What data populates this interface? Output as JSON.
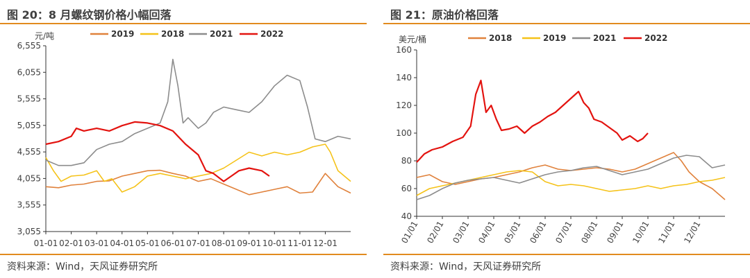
{
  "charts": [
    {
      "title": "图 20：8 月螺纹钢价格小幅回落",
      "source": "资料来源：Wind，天风证券研究所",
      "chart_data": {
        "type": "line",
        "ylabel": "元/吨",
        "ylim": [
          3055,
          6555
        ],
        "yticks": [
          "6,555",
          "6,055",
          "5,555",
          "5,055",
          "4,555",
          "4,055",
          "3,555",
          "3,055"
        ],
        "ytick_values": [
          6555,
          6055,
          5555,
          5055,
          4555,
          4055,
          3555,
          3055
        ],
        "xticks": [
          "01-01",
          "02-01",
          "03-01",
          "04-01",
          "05-01",
          "06-01",
          "07-01",
          "08-01",
          "09-01",
          "10-01",
          "11-01",
          "12-01"
        ],
        "xlim": [
          0,
          12
        ],
        "legend_position": "top",
        "series": [
          {
            "name": "2019",
            "color": "#e0813b",
            "points": [
              [
                0,
                3900
              ],
              [
                0.5,
                3880
              ],
              [
                1,
                3930
              ],
              [
                1.5,
                3950
              ],
              [
                2,
                4000
              ],
              [
                2.5,
                4010
              ],
              [
                3,
                4100
              ],
              [
                3.5,
                4150
              ],
              [
                4,
                4200
              ],
              [
                4.5,
                4210
              ],
              [
                5,
                4150
              ],
              [
                5.5,
                4100
              ],
              [
                6,
                4000
              ],
              [
                6.5,
                4050
              ],
              [
                7,
                3950
              ],
              [
                7.5,
                3850
              ],
              [
                8,
                3750
              ],
              [
                8.5,
                3800
              ],
              [
                9,
                3850
              ],
              [
                9.5,
                3900
              ],
              [
                10,
                3780
              ],
              [
                10.5,
                3800
              ],
              [
                11,
                4150
              ],
              [
                11.5,
                3900
              ],
              [
                12,
                3780
              ]
            ]
          },
          {
            "name": "2018",
            "color": "#f5c218",
            "points": [
              [
                0,
                4450
              ],
              [
                0.3,
                4200
              ],
              [
                0.6,
                4000
              ],
              [
                1,
                4100
              ],
              [
                1.5,
                4120
              ],
              [
                2,
                4200
              ],
              [
                2.3,
                4000
              ],
              [
                2.6,
                4050
              ],
              [
                3,
                3800
              ],
              [
                3.5,
                3900
              ],
              [
                4,
                4100
              ],
              [
                4.5,
                4150
              ],
              [
                5,
                4100
              ],
              [
                5.5,
                4050
              ],
              [
                6,
                4100
              ],
              [
                6.5,
                4150
              ],
              [
                7,
                4250
              ],
              [
                7.5,
                4400
              ],
              [
                8,
                4550
              ],
              [
                8.5,
                4480
              ],
              [
                9,
                4550
              ],
              [
                9.5,
                4500
              ],
              [
                10,
                4550
              ],
              [
                10.5,
                4650
              ],
              [
                11,
                4700
              ],
              [
                11.2,
                4550
              ],
              [
                11.5,
                4200
              ],
              [
                12,
                4000
              ]
            ]
          },
          {
            "name": "2021",
            "color": "#8c8c8c",
            "points": [
              [
                0,
                4400
              ],
              [
                0.5,
                4300
              ],
              [
                1,
                4300
              ],
              [
                1.5,
                4350
              ],
              [
                2,
                4600
              ],
              [
                2.5,
                4700
              ],
              [
                3,
                4750
              ],
              [
                3.5,
                4900
              ],
              [
                4,
                5000
              ],
              [
                4.5,
                5100
              ],
              [
                4.8,
                5500
              ],
              [
                5,
                6300
              ],
              [
                5.2,
                5800
              ],
              [
                5.4,
                5100
              ],
              [
                5.6,
                5200
              ],
              [
                6,
                5000
              ],
              [
                6.3,
                5100
              ],
              [
                6.6,
                5300
              ],
              [
                7,
                5400
              ],
              [
                7.5,
                5350
              ],
              [
                8,
                5300
              ],
              [
                8.5,
                5500
              ],
              [
                9,
                5800
              ],
              [
                9.5,
                6000
              ],
              [
                10,
                5900
              ],
              [
                10.3,
                5400
              ],
              [
                10.6,
                4800
              ],
              [
                11,
                4750
              ],
              [
                11.5,
                4850
              ],
              [
                12,
                4800
              ]
            ]
          },
          {
            "name": "2022",
            "color": "#e3130f",
            "points": [
              [
                0,
                4700
              ],
              [
                0.5,
                4750
              ],
              [
                1,
                4850
              ],
              [
                1.2,
                5000
              ],
              [
                1.5,
                4950
              ],
              [
                2,
                5000
              ],
              [
                2.5,
                4950
              ],
              [
                3,
                5050
              ],
              [
                3.5,
                5120
              ],
              [
                4,
                5100
              ],
              [
                4.5,
                5050
              ],
              [
                5,
                4950
              ],
              [
                5.5,
                4700
              ],
              [
                6,
                4500
              ],
              [
                6.3,
                4200
              ],
              [
                6.6,
                4150
              ],
              [
                7,
                4000
              ],
              [
                7.3,
                4100
              ],
              [
                7.6,
                4200
              ],
              [
                8,
                4250
              ],
              [
                8.5,
                4200
              ],
              [
                8.8,
                4100
              ]
            ]
          }
        ]
      }
    },
    {
      "title": "图 21：原油价格回落",
      "source": "资料来源：Wind，天风证券研究所",
      "chart_data": {
        "type": "line",
        "ylabel": "美元/桶",
        "ylim": [
          40,
          160
        ],
        "yticks": [
          "160",
          "140",
          "120",
          "100",
          "80",
          "60",
          "40"
        ],
        "ytick_values": [
          160,
          140,
          120,
          100,
          80,
          60,
          40
        ],
        "xticks": [
          "01/01",
          "02/01",
          "03/01",
          "04/01",
          "05/01",
          "06/01",
          "07/01",
          "08/01",
          "09/01",
          "10/01",
          "11/01",
          "12/01"
        ],
        "xlim": [
          0,
          12
        ],
        "legend_position": "top",
        "series": [
          {
            "name": "2018",
            "color": "#e0813b",
            "points": [
              [
                0,
                68
              ],
              [
                0.5,
                70
              ],
              [
                1,
                65
              ],
              [
                1.5,
                63
              ],
              [
                2,
                65
              ],
              [
                2.5,
                67
              ],
              [
                3,
                68
              ],
              [
                3.5,
                70
              ],
              [
                4,
                72
              ],
              [
                4.5,
                75
              ],
              [
                5,
                77
              ],
              [
                5.5,
                74
              ],
              [
                6,
                73
              ],
              [
                6.5,
                74
              ],
              [
                7,
                75
              ],
              [
                7.5,
                74
              ],
              [
                8,
                72
              ],
              [
                8.5,
                74
              ],
              [
                9,
                78
              ],
              [
                9.5,
                82
              ],
              [
                10,
                86
              ],
              [
                10.3,
                80
              ],
              [
                10.6,
                72
              ],
              [
                11,
                65
              ],
              [
                11.5,
                60
              ],
              [
                12,
                52
              ]
            ]
          },
          {
            "name": "2019",
            "color": "#f5c218",
            "points": [
              [
                0,
                55
              ],
              [
                0.5,
                60
              ],
              [
                1,
                62
              ],
              [
                1.5,
                64
              ],
              [
                2,
                66
              ],
              [
                2.5,
                68
              ],
              [
                3,
                70
              ],
              [
                3.5,
                72
              ],
              [
                4,
                73
              ],
              [
                4.5,
                72
              ],
              [
                5,
                65
              ],
              [
                5.5,
                62
              ],
              [
                6,
                63
              ],
              [
                6.5,
                62
              ],
              [
                7,
                60
              ],
              [
                7.5,
                58
              ],
              [
                8,
                59
              ],
              [
                8.5,
                60
              ],
              [
                9,
                62
              ],
              [
                9.5,
                60
              ],
              [
                10,
                62
              ],
              [
                10.5,
                63
              ],
              [
                11,
                65
              ],
              [
                11.5,
                66
              ],
              [
                12,
                68
              ]
            ]
          },
          {
            "name": "2021",
            "color": "#8c8c8c",
            "points": [
              [
                0,
                52
              ],
              [
                0.5,
                55
              ],
              [
                1,
                60
              ],
              [
                1.5,
                64
              ],
              [
                2,
                66
              ],
              [
                2.5,
                67
              ],
              [
                3,
                68
              ],
              [
                3.5,
                66
              ],
              [
                4,
                64
              ],
              [
                4.5,
                67
              ],
              [
                5,
                70
              ],
              [
                5.5,
                72
              ],
              [
                6,
                73
              ],
              [
                6.5,
                75
              ],
              [
                7,
                76
              ],
              [
                7.5,
                73
              ],
              [
                8,
                70
              ],
              [
                8.5,
                72
              ],
              [
                9,
                74
              ],
              [
                9.5,
                78
              ],
              [
                10,
                82
              ],
              [
                10.5,
                84
              ],
              [
                11,
                83
              ],
              [
                11.5,
                75
              ],
              [
                12,
                77
              ]
            ]
          },
          {
            "name": "2022",
            "color": "#e3130f",
            "points": [
              [
                0,
                79
              ],
              [
                0.3,
                85
              ],
              [
                0.6,
                88
              ],
              [
                1,
                90
              ],
              [
                1.4,
                94
              ],
              [
                1.8,
                97
              ],
              [
                2.1,
                105
              ],
              [
                2.3,
                128
              ],
              [
                2.5,
                138
              ],
              [
                2.7,
                115
              ],
              [
                2.9,
                120
              ],
              [
                3.1,
                110
              ],
              [
                3.3,
                102
              ],
              [
                3.6,
                103
              ],
              [
                3.9,
                105
              ],
              [
                4.2,
                100
              ],
              [
                4.5,
                105
              ],
              [
                4.8,
                108
              ],
              [
                5.1,
                112
              ],
              [
                5.4,
                115
              ],
              [
                5.7,
                120
              ],
              [
                6,
                125
              ],
              [
                6.3,
                130
              ],
              [
                6.5,
                122
              ],
              [
                6.7,
                118
              ],
              [
                6.9,
                110
              ],
              [
                7.2,
                108
              ],
              [
                7.5,
                104
              ],
              [
                7.8,
                100
              ],
              [
                8,
                95
              ],
              [
                8.3,
                98
              ],
              [
                8.6,
                94
              ],
              [
                8.8,
                96
              ],
              [
                9,
                100
              ]
            ]
          }
        ]
      }
    }
  ]
}
